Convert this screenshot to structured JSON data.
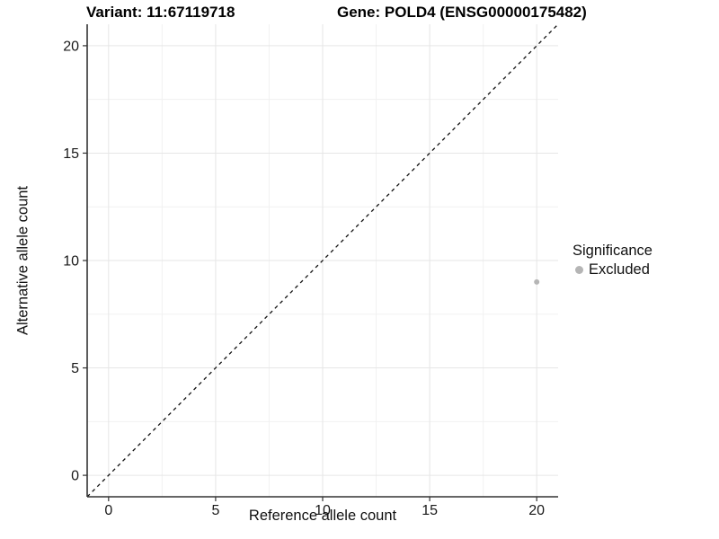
{
  "titles": {
    "variant": "Variant: 11:67119718",
    "gene": "Gene: POLD4 (ENSG00000175482)"
  },
  "chart_data": {
    "type": "scatter",
    "title": "Variant: 11:67119718    Gene: POLD4 (ENSG00000175482)",
    "xlabel": "Reference allele count",
    "ylabel": "Alternative allele count",
    "xlim": [
      -1,
      21
    ],
    "ylim": [
      -1,
      21
    ],
    "x_ticks": [
      0,
      5,
      10,
      15,
      20
    ],
    "y_ticks": [
      0,
      5,
      10,
      15,
      20
    ],
    "minor_ticks": [
      2.5,
      7.5,
      12.5,
      17.5
    ],
    "grid": "major and minor gridlines on white background",
    "series": [
      {
        "name": "Excluded",
        "color": "#b5b5b5",
        "points": [
          {
            "x": 20,
            "y": 9
          }
        ]
      }
    ],
    "reference_line": {
      "kind": "identity",
      "equation": "y = x",
      "style": "dashed",
      "color": "#111111"
    },
    "legend": {
      "title": "Significance",
      "position": "right",
      "items": [
        {
          "label": "Excluded",
          "color": "#b5b5b5"
        }
      ]
    }
  },
  "colors": {
    "background": "#ffffff",
    "axis_line": "#333333",
    "tick_text": "#1a1a1a",
    "grid_major": "#e6e6e6",
    "grid_minor": "#f1f1f1",
    "point": "#b5b5b5",
    "reference_line": "#111111"
  }
}
